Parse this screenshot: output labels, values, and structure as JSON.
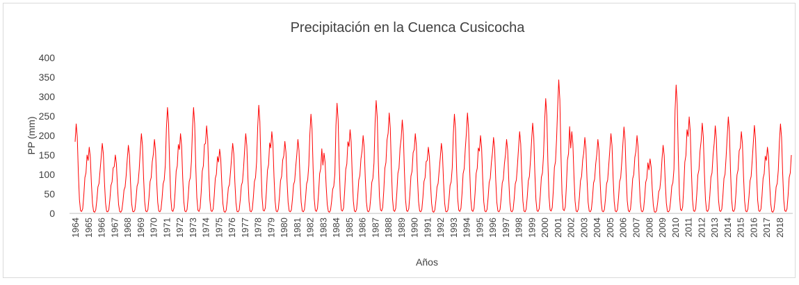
{
  "chart_data": {
    "type": "line",
    "title": "Precipitación en la Cuenca Cusicocha",
    "x_label": "Años",
    "y_label": "PP (mm)",
    "color": "#ff0000",
    "ylim": [
      0,
      400
    ],
    "yticks": [
      0,
      50,
      100,
      150,
      200,
      250,
      300,
      350,
      400
    ],
    "grid": false,
    "categories": [
      "1964",
      null,
      null,
      null,
      null,
      null,
      null,
      null,
      null,
      null,
      null,
      null,
      "1965",
      null,
      null,
      null,
      null,
      null,
      null,
      null,
      null,
      null,
      null,
      null,
      "1966",
      null,
      null,
      null,
      null,
      null,
      null,
      null,
      null,
      null,
      null,
      null,
      "1967",
      null,
      null,
      null,
      null,
      null,
      null,
      null,
      null,
      null,
      null,
      null,
      "1968",
      null,
      null,
      null,
      null,
      null,
      null,
      null,
      null,
      null,
      null,
      null,
      "1969",
      null,
      null,
      null,
      null,
      null,
      null,
      null,
      null,
      null,
      null,
      null,
      "1970",
      null,
      null,
      null,
      null,
      null,
      null,
      null,
      null,
      null,
      null,
      null,
      "1971",
      null,
      null,
      null,
      null,
      null,
      null,
      null,
      null,
      null,
      null,
      null,
      "1972",
      null,
      null,
      null,
      null,
      null,
      null,
      null,
      null,
      null,
      null,
      null,
      "1973",
      null,
      null,
      null,
      null,
      null,
      null,
      null,
      null,
      null,
      null,
      null,
      "1974",
      null,
      null,
      null,
      null,
      null,
      null,
      null,
      null,
      null,
      null,
      null,
      "1975",
      null,
      null,
      null,
      null,
      null,
      null,
      null,
      null,
      null,
      null,
      null,
      "1976",
      null,
      null,
      null,
      null,
      null,
      null,
      null,
      null,
      null,
      null,
      null,
      "1977",
      null,
      null,
      null,
      null,
      null,
      null,
      null,
      null,
      null,
      null,
      null,
      "1978",
      null,
      null,
      null,
      null,
      null,
      null,
      null,
      null,
      null,
      null,
      null,
      "1979",
      null,
      null,
      null,
      null,
      null,
      null,
      null,
      null,
      null,
      null,
      null,
      "1980",
      null,
      null,
      null,
      null,
      null,
      null,
      null,
      null,
      null,
      null,
      null,
      "1981",
      null,
      null,
      null,
      null,
      null,
      null,
      null,
      null,
      null,
      null,
      null,
      "1982",
      null,
      null,
      null,
      null,
      null,
      null,
      null,
      null,
      null,
      null,
      null,
      "1983",
      null,
      null,
      null,
      null,
      null,
      null,
      null,
      null,
      null,
      null,
      null,
      "1984",
      null,
      null,
      null,
      null,
      null,
      null,
      null,
      null,
      null,
      null,
      null,
      "1985",
      null,
      null,
      null,
      null,
      null,
      null,
      null,
      null,
      null,
      null,
      null,
      "1986",
      null,
      null,
      null,
      null,
      null,
      null,
      null,
      null,
      null,
      null,
      null,
      "1987",
      null,
      null,
      null,
      null,
      null,
      null,
      null,
      null,
      null,
      null,
      null,
      "1988",
      null,
      null,
      null,
      null,
      null,
      null,
      null,
      null,
      null,
      null,
      null,
      "1989",
      null,
      null,
      null,
      null,
      null,
      null,
      null,
      null,
      null,
      null,
      null,
      "1990",
      null,
      null,
      null,
      null,
      null,
      null,
      null,
      null,
      null,
      null,
      null,
      "1991",
      null,
      null,
      null,
      null,
      null,
      null,
      null,
      null,
      null,
      null,
      null,
      "1992",
      null,
      null,
      null,
      null,
      null,
      null,
      null,
      null,
      null,
      null,
      null,
      "1993",
      null,
      null,
      null,
      null,
      null,
      null,
      null,
      null,
      null,
      null,
      null,
      "1994",
      null,
      null,
      null,
      null,
      null,
      null,
      null,
      null,
      null,
      null,
      null,
      "1995",
      null,
      null,
      null,
      null,
      null,
      null,
      null,
      null,
      null,
      null,
      null,
      "1996",
      null,
      null,
      null,
      null,
      null,
      null,
      null,
      null,
      null,
      null,
      null,
      "1997",
      null,
      null,
      null,
      null,
      null,
      null,
      null,
      null,
      null,
      null,
      null,
      "1998",
      null,
      null,
      null,
      null,
      null,
      null,
      null,
      null,
      null,
      null,
      null,
      "1999",
      null,
      null,
      null,
      null,
      null,
      null,
      null,
      null,
      null,
      null,
      null,
      "2000",
      null,
      null,
      null,
      null,
      null,
      null,
      null,
      null,
      null,
      null,
      null,
      "2001",
      null,
      null,
      null,
      null,
      null,
      null,
      null,
      null,
      null,
      null,
      null,
      "2002",
      null,
      null,
      null,
      null,
      null,
      null,
      null,
      null,
      null,
      null,
      null,
      "2003",
      null,
      null,
      null,
      null,
      null,
      null,
      null,
      null,
      null,
      null,
      null,
      "2004",
      null,
      null,
      null,
      null,
      null,
      null,
      null,
      null,
      null,
      null,
      null,
      "2005",
      null,
      null,
      null,
      null,
      null,
      null,
      null,
      null,
      null,
      null,
      null,
      "2006",
      null,
      null,
      null,
      null,
      null,
      null,
      null,
      null,
      null,
      null,
      null,
      "2007",
      null,
      null,
      null,
      null,
      null,
      null,
      null,
      null,
      null,
      null,
      null,
      "2008",
      null,
      null,
      null,
      null,
      null,
      null,
      null,
      null,
      null,
      null,
      null,
      "2009",
      null,
      null,
      null,
      null,
      null,
      null,
      null,
      null,
      null,
      null,
      null,
      "2010",
      null,
      null,
      null,
      null,
      null,
      null,
      null,
      null,
      null,
      null,
      null,
      "2011",
      null,
      null,
      null,
      null,
      null,
      null,
      null,
      null,
      null,
      null,
      null,
      "2012",
      null,
      null,
      null,
      null,
      null,
      null,
      null,
      null,
      null,
      null,
      null,
      "2013",
      null,
      null,
      null,
      null,
      null,
      null,
      null,
      null,
      null,
      null,
      null,
      "2014",
      null,
      null,
      null,
      null,
      null,
      null,
      null,
      null,
      null,
      null,
      null,
      "2015",
      null,
      null,
      null,
      null,
      null,
      null,
      null,
      null,
      null,
      null,
      null,
      "2016",
      null,
      null,
      null,
      null,
      null,
      null,
      null,
      null,
      null,
      null,
      null,
      "2017",
      null,
      null,
      null,
      null,
      null,
      null,
      null,
      null,
      null,
      null,
      null,
      "2018",
      null,
      null,
      null,
      null,
      null,
      null,
      null,
      null,
      null,
      null,
      null
    ],
    "values": [
      184,
      230,
      196,
      104,
      35,
      7,
      5,
      12,
      46,
      92,
      104,
      150,
      136,
      170,
      145,
      77,
      26,
      5,
      3,
      9,
      34,
      68,
      77,
      111,
      144,
      180,
      153,
      81,
      27,
      5,
      4,
      9,
      36,
      72,
      81,
      117,
      120,
      150,
      128,
      68,
      23,
      5,
      3,
      8,
      30,
      60,
      68,
      98,
      140,
      175,
      149,
      79,
      26,
      5,
      4,
      9,
      35,
      70,
      79,
      114,
      164,
      205,
      174,
      92,
      31,
      6,
      4,
      10,
      41,
      82,
      92,
      133,
      152,
      190,
      162,
      86,
      29,
      6,
      4,
      10,
      38,
      76,
      86,
      124,
      218,
      272,
      231,
      122,
      41,
      8,
      5,
      14,
      54,
      109,
      122,
      177,
      164,
      205,
      174,
      92,
      31,
      6,
      4,
      10,
      41,
      82,
      92,
      133,
      218,
      272,
      231,
      122,
      41,
      8,
      5,
      14,
      54,
      109,
      122,
      177,
      180,
      225,
      191,
      101,
      34,
      7,
      5,
      11,
      45,
      90,
      101,
      146,
      132,
      165,
      140,
      74,
      25,
      5,
      3,
      8,
      33,
      66,
      74,
      107,
      144,
      180,
      153,
      81,
      27,
      5,
      4,
      9,
      36,
      72,
      81,
      117,
      164,
      205,
      174,
      92,
      31,
      6,
      4,
      10,
      41,
      82,
      92,
      133,
      222,
      278,
      236,
      125,
      42,
      8,
      6,
      14,
      56,
      111,
      125,
      181,
      168,
      210,
      179,
      95,
      32,
      6,
      4,
      11,
      42,
      84,
      95,
      137,
      148,
      185,
      157,
      83,
      28,
      6,
      4,
      9,
      37,
      74,
      83,
      120,
      152,
      190,
      162,
      86,
      29,
      6,
      4,
      10,
      38,
      76,
      86,
      124,
      204,
      255,
      217,
      115,
      38,
      8,
      5,
      13,
      51,
      102,
      115,
      166,
      124,
      155,
      132,
      70,
      23,
      5,
      3,
      8,
      31,
      62,
      70,
      101,
      226,
      283,
      241,
      127,
      42,
      8,
      6,
      14,
      57,
      113,
      127,
      184,
      172,
      215,
      183,
      97,
      32,
      6,
      4,
      11,
      43,
      86,
      97,
      140,
      160,
      200,
      170,
      90,
      30,
      6,
      4,
      10,
      40,
      80,
      90,
      130,
      232,
      290,
      247,
      131,
      44,
      9,
      6,
      15,
      58,
      116,
      131,
      189,
      206,
      258,
      219,
      116,
      39,
      8,
      5,
      13,
      52,
      103,
      116,
      168,
      192,
      240,
      204,
      108,
      36,
      7,
      5,
      12,
      48,
      96,
      108,
      156,
      164,
      205,
      174,
      92,
      31,
      6,
      4,
      10,
      41,
      82,
      92,
      133,
      136,
      170,
      145,
      77,
      26,
      5,
      3,
      9,
      34,
      68,
      77,
      111,
      144,
      180,
      153,
      81,
      27,
      5,
      4,
      9,
      36,
      72,
      81,
      117,
      204,
      255,
      217,
      115,
      38,
      8,
      5,
      13,
      51,
      102,
      115,
      166,
      206,
      258,
      219,
      116,
      39,
      8,
      5,
      13,
      52,
      103,
      116,
      168,
      160,
      200,
      170,
      90,
      30,
      6,
      4,
      10,
      40,
      80,
      90,
      130,
      156,
      195,
      166,
      88,
      29,
      6,
      4,
      10,
      39,
      78,
      88,
      127,
      152,
      190,
      162,
      86,
      29,
      6,
      4,
      10,
      38,
      76,
      86,
      124,
      168,
      210,
      179,
      95,
      32,
      6,
      4,
      11,
      42,
      84,
      95,
      137,
      186,
      232,
      197,
      104,
      35,
      7,
      5,
      12,
      46,
      93,
      104,
      151,
      236,
      295,
      251,
      133,
      44,
      9,
      6,
      15,
      59,
      118,
      133,
      192,
      274,
      343,
      292,
      154,
      51,
      10,
      7,
      17,
      69,
      137,
      154,
      223,
      168,
      210,
      179,
      95,
      32,
      6,
      4,
      11,
      42,
      84,
      95,
      137,
      156,
      195,
      166,
      88,
      29,
      6,
      4,
      10,
      39,
      78,
      88,
      127,
      152,
      190,
      162,
      86,
      29,
      6,
      4,
      10,
      38,
      76,
      86,
      124,
      164,
      205,
      174,
      92,
      31,
      6,
      4,
      10,
      41,
      82,
      92,
      133,
      178,
      222,
      189,
      100,
      33,
      7,
      4,
      11,
      44,
      89,
      100,
      144,
      160,
      200,
      170,
      90,
      30,
      6,
      4,
      10,
      40,
      80,
      90,
      130,
      112,
      140,
      119,
      63,
      21,
      4,
      3,
      7,
      28,
      56,
      63,
      91,
      140,
      175,
      149,
      79,
      26,
      5,
      4,
      9,
      35,
      70,
      79,
      114,
      264,
      330,
      281,
      149,
      50,
      10,
      7,
      17,
      66,
      132,
      149,
      215,
      198,
      248,
      211,
      112,
      37,
      7,
      5,
      12,
      50,
      99,
      112,
      161,
      186,
      232,
      197,
      104,
      35,
      7,
      5,
      12,
      46,
      93,
      104,
      151,
      180,
      225,
      191,
      101,
      34,
      7,
      5,
      11,
      45,
      90,
      101,
      146,
      198,
      248,
      211,
      112,
      37,
      7,
      5,
      12,
      50,
      99,
      112,
      161,
      168,
      210,
      179,
      95,
      32,
      6,
      4,
      11,
      42,
      84,
      95,
      137,
      181,
      226,
      192,
      102,
      34,
      7,
      5,
      11,
      45,
      90,
      102,
      147,
      136,
      170,
      145,
      77,
      26,
      5,
      3,
      9,
      34,
      68,
      77,
      111,
      184,
      230,
      196,
      104,
      35,
      7,
      5,
      12,
      46,
      92,
      104,
      150
    ]
  }
}
